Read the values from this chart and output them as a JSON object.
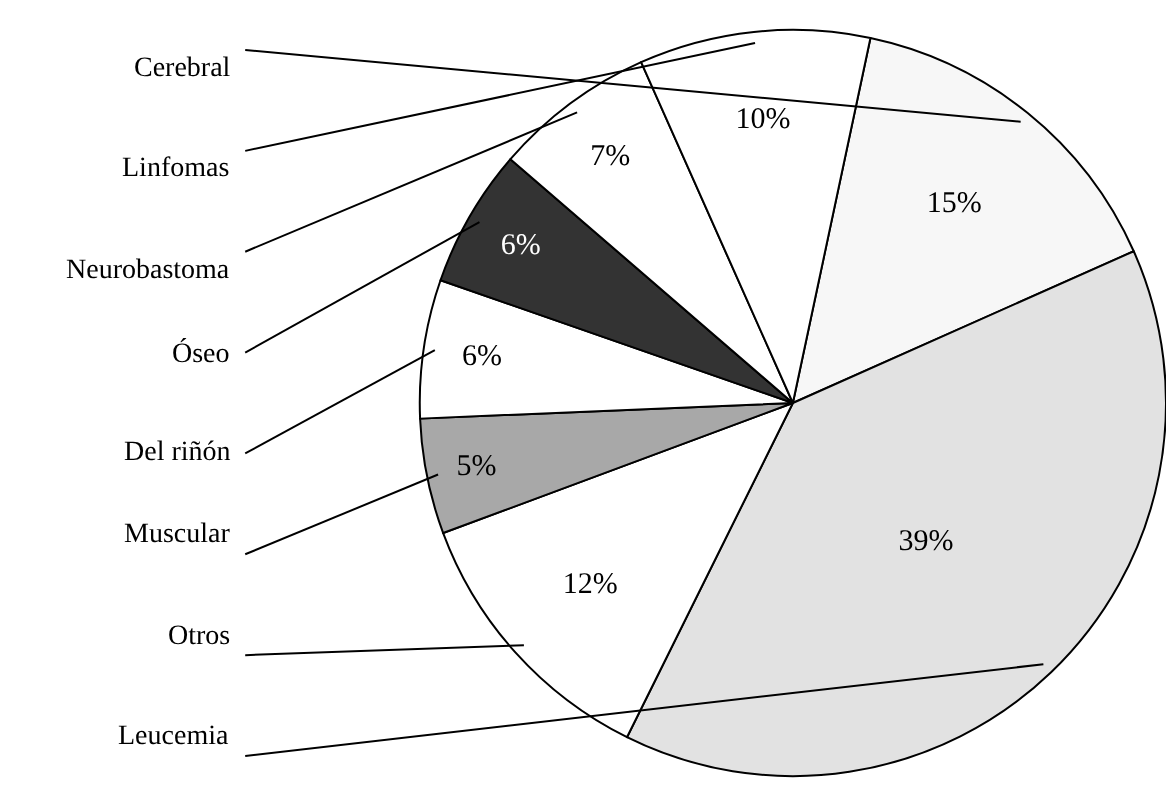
{
  "chart_data": {
    "type": "pie",
    "categories": [
      "Cerebral",
      "Leucemia",
      "Otros",
      "Muscular",
      "Del riñón",
      "Óseo",
      "Neurobastoma",
      "Linfomas"
    ],
    "values": [
      15,
      39,
      12,
      5,
      6,
      6,
      7,
      10
    ],
    "value_labels": [
      "15%",
      "39%",
      "12%",
      "5%",
      "6%",
      "6%",
      "7%",
      "10%"
    ],
    "colors": [
      "#f7f7f7",
      "#e2e2e2",
      "#ffffff",
      "#a8a8a8",
      "#ffffff",
      "#333333",
      "#ffffff",
      "#ffffff"
    ],
    "legend": false
  }
}
